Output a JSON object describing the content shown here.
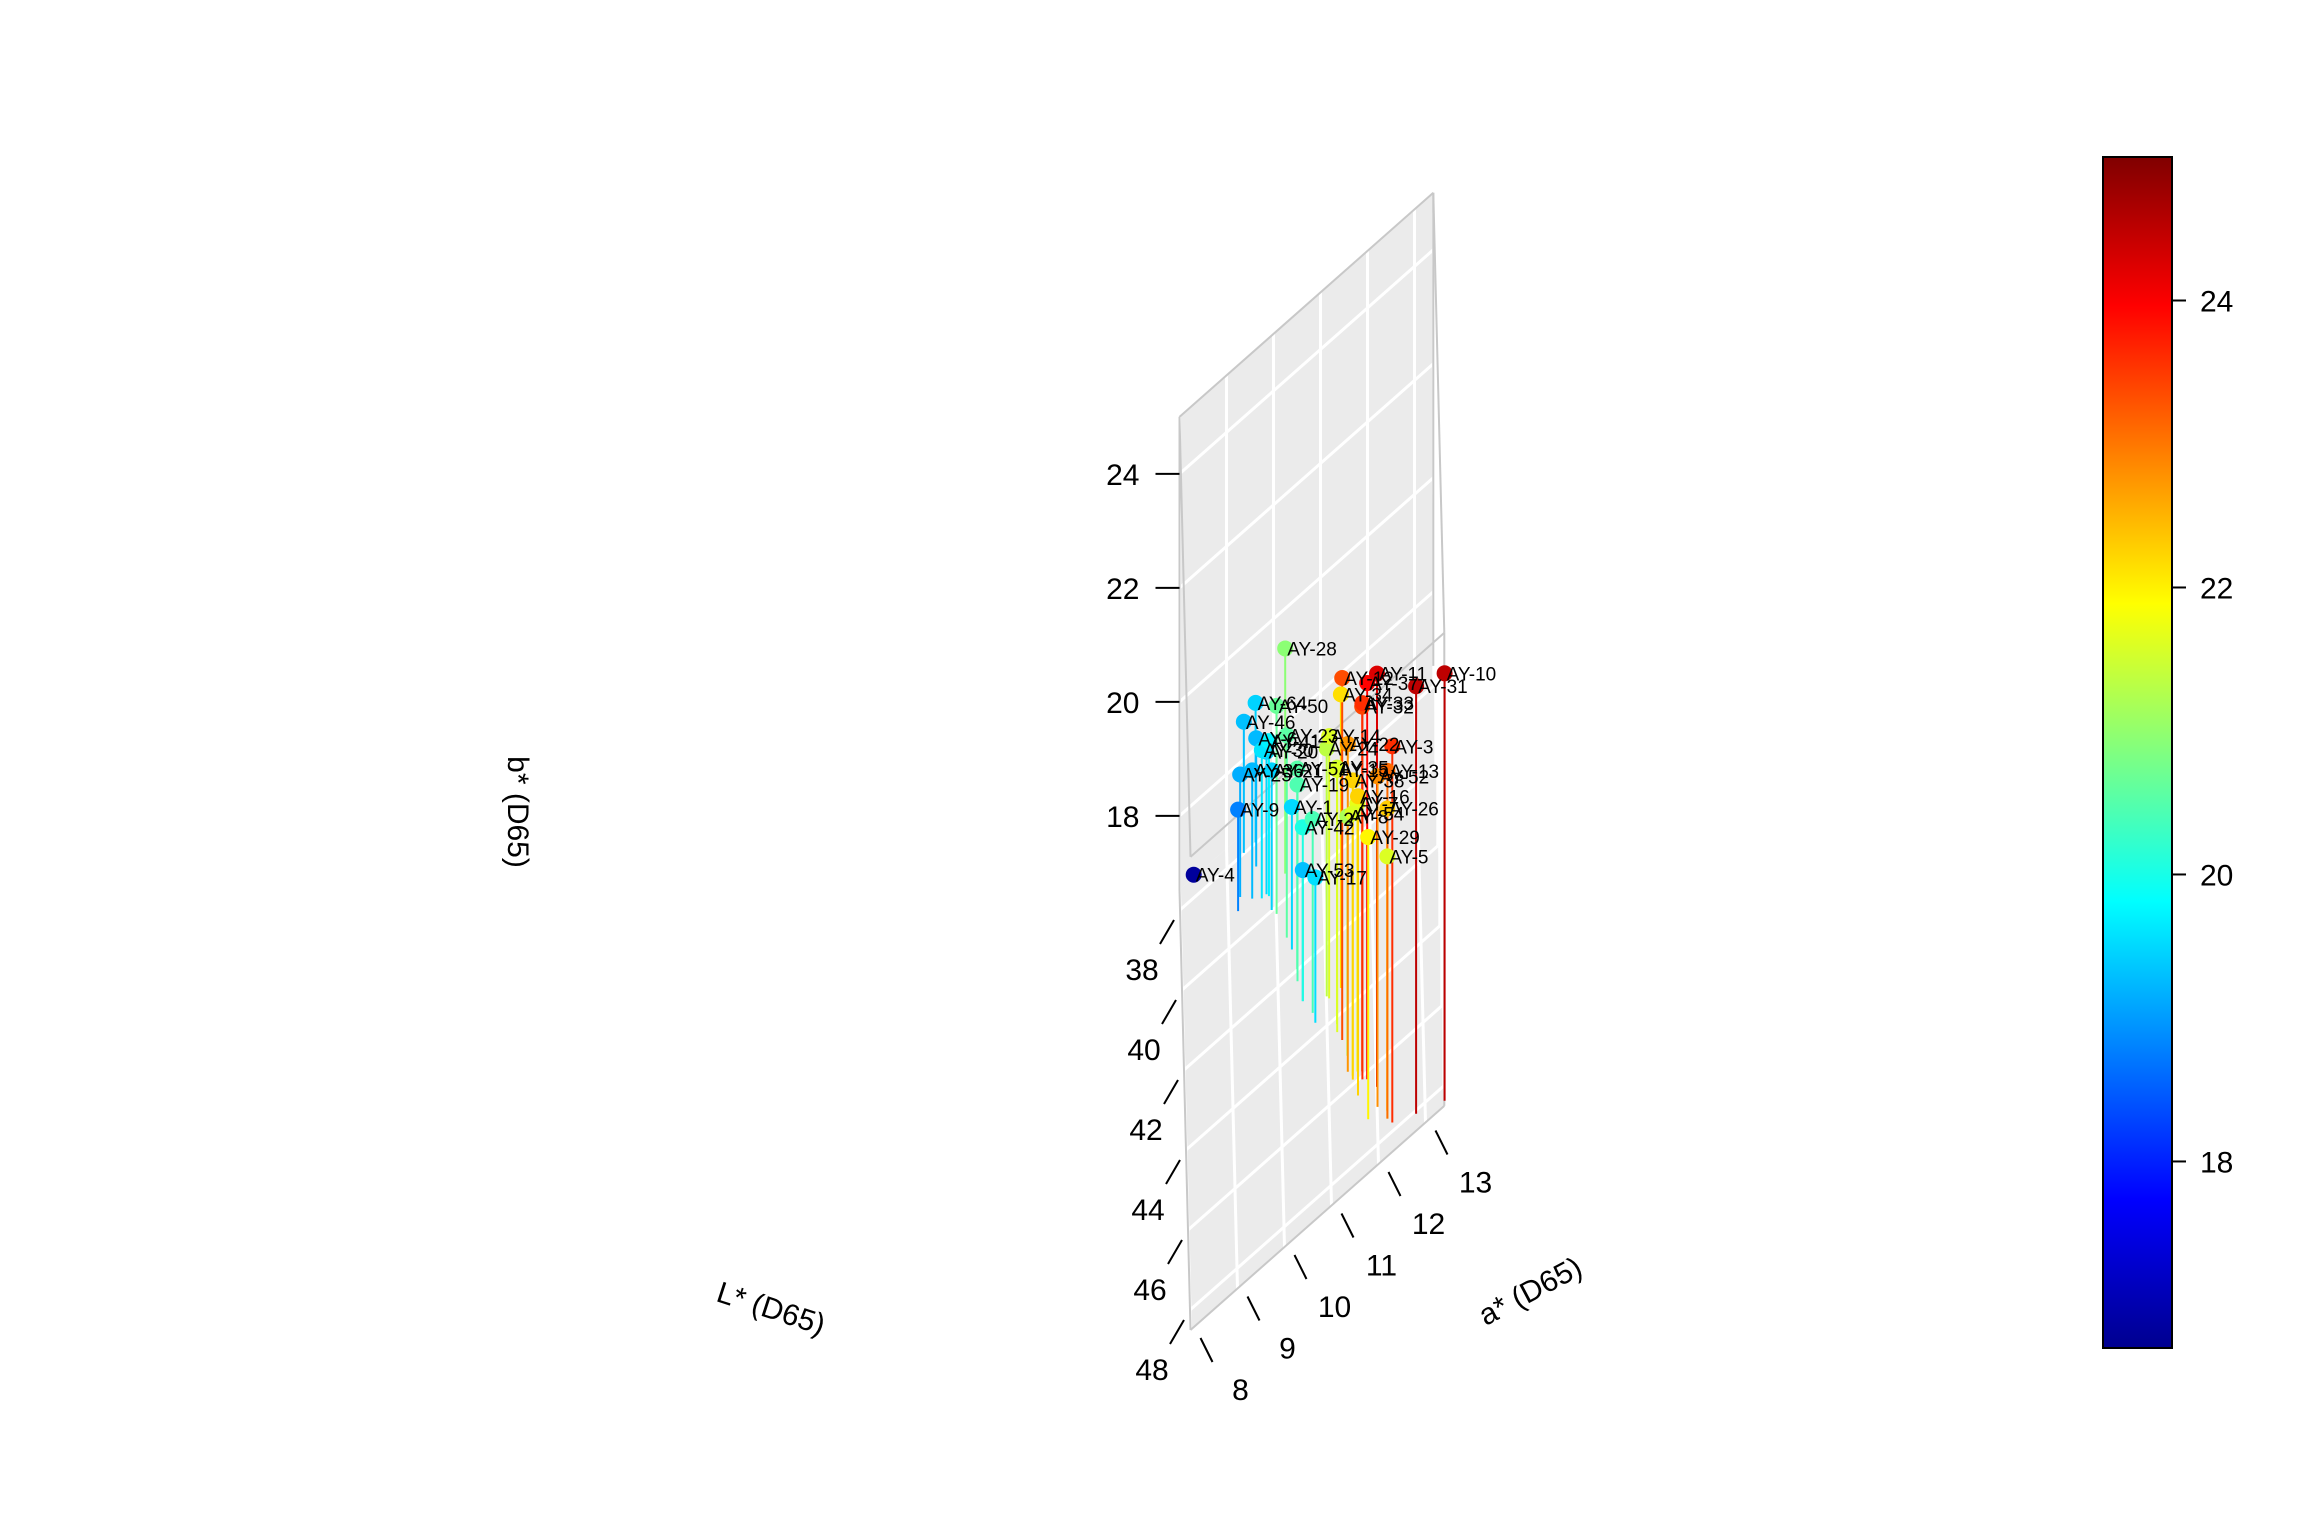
{
  "chart_data": {
    "type": "scatter3d",
    "xlabel": "L* (D65)",
    "ylabel": "a* (D65)",
    "zlabel": "b* (D65)",
    "x_ticks": [
      38,
      40,
      42,
      44,
      46,
      48
    ],
    "y_ticks": [
      8,
      9,
      10,
      11,
      12,
      13
    ],
    "z_ticks": [
      18,
      20,
      22,
      24
    ],
    "colorbar_ticks": [
      18,
      20,
      22,
      24
    ],
    "xlim": [
      37.5,
      48.5
    ],
    "ylim": [
      8,
      13.4
    ],
    "zlim": [
      16.7,
      25.0
    ],
    "colorbar_range": [
      16.7,
      25.0
    ],
    "palette": [
      "#00008f",
      "#0000ff",
      "#0080ff",
      "#00ffff",
      "#80ff80",
      "#ffff00",
      "#ff8000",
      "#ff0000",
      "#800000"
    ],
    "stem_floor": 17.0,
    "points": [
      {
        "label": "AY-4",
        "L": 37.6,
        "a": 8.3,
        "b": 16.82
      },
      {
        "label": "AY-9",
        "L": 39.7,
        "a": 9.2,
        "b": 18.78
      },
      {
        "label": "AY-25",
        "L": 39.4,
        "a": 9.25,
        "b": 19.15
      },
      {
        "label": "AY-36",
        "L": 39.7,
        "a": 9.5,
        "b": 19.25
      },
      {
        "label": "AY-6",
        "L": 39.0,
        "a": 9.6,
        "b": 19.25
      },
      {
        "label": "AY-46",
        "L": 38.4,
        "a": 9.35,
        "b": 19.3
      },
      {
        "label": "AY-64",
        "L": 38.4,
        "a": 9.6,
        "b": 19.45
      },
      {
        "label": "AY-20",
        "L": 39.9,
        "a": 9.8,
        "b": 19.5
      },
      {
        "label": "AY-21",
        "L": 40.4,
        "a": 9.9,
        "b": 19.45
      },
      {
        "label": "AY-30",
        "L": 39.9,
        "a": 9.7,
        "b": 19.6
      },
      {
        "label": "AY-41",
        "L": 40.0,
        "a": 9.85,
        "b": 19.72
      },
      {
        "label": "AY-1",
        "L": 41.8,
        "a": 10.3,
        "b": 19.5
      },
      {
        "label": "AY-53",
        "L": 43.3,
        "a": 10.5,
        "b": 19.3
      },
      {
        "label": "AY-17",
        "L": 44.1,
        "a": 10.75,
        "b": 19.55
      },
      {
        "label": "AY-42",
        "L": 43.3,
        "a": 10.5,
        "b": 20.05
      },
      {
        "label": "AY-28",
        "L": 39.8,
        "a": 10.2,
        "b": 20.95
      },
      {
        "label": "AY-50",
        "L": 40.6,
        "a": 10.0,
        "b": 20.65
      },
      {
        "label": "AY-23",
        "L": 41.4,
        "a": 10.2,
        "b": 20.55
      },
      {
        "label": "AY-51",
        "L": 42.4,
        "a": 10.4,
        "b": 20.52
      },
      {
        "label": "AY-19",
        "L": 42.7,
        "a": 10.4,
        "b": 20.45
      },
      {
        "label": "AY-2",
        "L": 43.8,
        "a": 10.7,
        "b": 20.4
      },
      {
        "label": "AY-24",
        "L": 43.7,
        "a": 11.0,
        "b": 21.35
      },
      {
        "label": "AY-14",
        "L": 43.8,
        "a": 11.05,
        "b": 21.6
      },
      {
        "label": "AY-15",
        "L": 44.8,
        "a": 11.2,
        "b": 21.6
      },
      {
        "label": "AY-35",
        "L": 44.6,
        "a": 11.2,
        "b": 21.5
      },
      {
        "label": "AY-8",
        "L": 45.6,
        "a": 11.4,
        "b": 21.2
      },
      {
        "label": "AY-54",
        "L": 46.2,
        "a": 11.5,
        "b": 21.6
      },
      {
        "label": "AY-7",
        "L": 46.2,
        "a": 11.6,
        "b": 21.7
      },
      {
        "label": "AY-34",
        "L": 43.8,
        "a": 11.3,
        "b": 22.15
      },
      {
        "label": "AY-38",
        "L": 46.3,
        "a": 11.5,
        "b": 22.25
      },
      {
        "label": "AY-16",
        "L": 46.8,
        "a": 11.6,
        "b": 22.25
      },
      {
        "label": "AY-22",
        "L": 46.0,
        "a": 11.4,
        "b": 22.75
      },
      {
        "label": "AY-29",
        "L": 47.6,
        "a": 11.8,
        "b": 21.95
      },
      {
        "label": "AY-5",
        "L": 48.0,
        "a": 12.2,
        "b": 21.6
      },
      {
        "label": "AY-26",
        "L": 47.8,
        "a": 12.2,
        "b": 22.3
      },
      {
        "label": "AY-52",
        "L": 47.5,
        "a": 12.0,
        "b": 22.8
      },
      {
        "label": "AY-13",
        "L": 48.0,
        "a": 12.2,
        "b": 23.1
      },
      {
        "label": "AY-12",
        "L": 45.1,
        "a": 11.3,
        "b": 23.35
      },
      {
        "label": "AY-32",
        "L": 46.3,
        "a": 11.7,
        "b": 23.4
      },
      {
        "label": "AY-33",
        "L": 46.5,
        "a": 11.7,
        "b": 23.6
      },
      {
        "label": "AY-37",
        "L": 46.6,
        "a": 11.8,
        "b": 23.95
      },
      {
        "label": "AY-3",
        "L": 48.2,
        "a": 12.3,
        "b": 23.6
      },
      {
        "label": "AY-11",
        "L": 47.0,
        "a": 12.0,
        "b": 24.25
      },
      {
        "label": "AY-31",
        "L": 48.5,
        "a": 12.8,
        "b": 24.5
      },
      {
        "label": "AY-10",
        "L": 48.8,
        "a": 13.4,
        "b": 24.5
      }
    ]
  }
}
